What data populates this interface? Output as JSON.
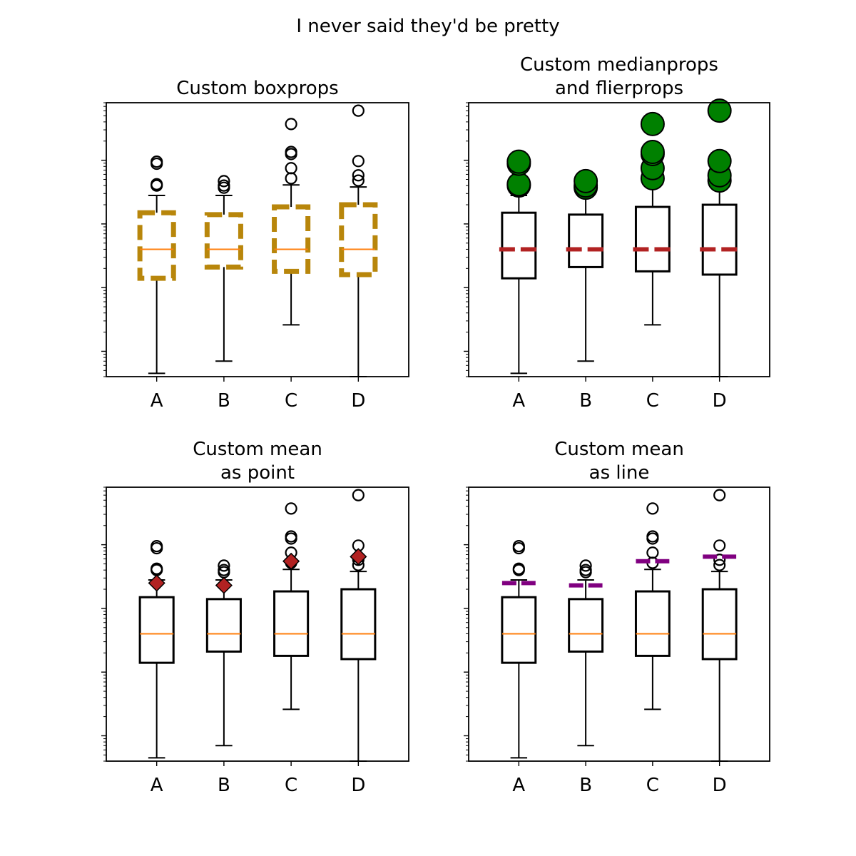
{
  "figure": {
    "suptitle": "I never said they'd be pretty"
  },
  "colors": {
    "box_edge": "#000000",
    "median_default": "#ff7f0e",
    "custom_box": "#b8860b",
    "custom_median": "#b22222",
    "flier_green": "#008000",
    "mean_point": "#b22222",
    "mean_line": "#800080"
  },
  "chart_data": [
    {
      "type": "box",
      "title": "Custom boxprops",
      "categories": [
        "A",
        "B",
        "C",
        "D"
      ],
      "yscale": "log",
      "ytick_labels_shown": false,
      "style": "custom-box",
      "ylim": [
        0.0004,
        8
      ],
      "series": [
        {
          "name": "A",
          "whislo": 0.00045,
          "q1": 0.014,
          "med": 0.04,
          "q3": 0.15,
          "whishi": 0.28,
          "mean": 0.25,
          "fliers": [
            0.4,
            0.42,
            0.88,
            0.95
          ]
        },
        {
          "name": "B",
          "whislo": 0.0007,
          "q1": 0.021,
          "med": 0.04,
          "q3": 0.14,
          "whishi": 0.28,
          "mean": 0.23,
          "fliers": [
            0.37,
            0.4,
            0.47
          ]
        },
        {
          "name": "C",
          "whislo": 0.0026,
          "q1": 0.018,
          "med": 0.04,
          "q3": 0.185,
          "whishi": 0.41,
          "mean": 0.55,
          "fliers": [
            0.52,
            0.75,
            1.25,
            1.35,
            3.7
          ]
        },
        {
          "name": "D",
          "whislo": 0.0004,
          "q1": 0.016,
          "med": 0.04,
          "q3": 0.2,
          "whishi": 0.38,
          "mean": 0.65,
          "fliers": [
            0.48,
            0.58,
            0.97,
            6.0
          ]
        }
      ]
    },
    {
      "type": "box",
      "title": "Custom medianprops\nand flierprops",
      "categories": [
        "A",
        "B",
        "C",
        "D"
      ],
      "yscale": "log",
      "ytick_labels_shown": false,
      "style": "custom-median-flier",
      "ylim": [
        0.0004,
        8
      ],
      "series": [
        {
          "name": "A",
          "whislo": 0.00045,
          "q1": 0.014,
          "med": 0.04,
          "q3": 0.15,
          "whishi": 0.28,
          "mean": 0.25,
          "fliers": [
            0.4,
            0.42,
            0.88,
            0.95
          ]
        },
        {
          "name": "B",
          "whislo": 0.0007,
          "q1": 0.021,
          "med": 0.04,
          "q3": 0.14,
          "whishi": 0.28,
          "mean": 0.23,
          "fliers": [
            0.37,
            0.4,
            0.47
          ]
        },
        {
          "name": "C",
          "whislo": 0.0026,
          "q1": 0.018,
          "med": 0.04,
          "q3": 0.185,
          "whishi": 0.41,
          "mean": 0.55,
          "fliers": [
            0.52,
            0.75,
            1.25,
            1.35,
            3.7
          ]
        },
        {
          "name": "D",
          "whislo": 0.0004,
          "q1": 0.016,
          "med": 0.04,
          "q3": 0.2,
          "whishi": 0.38,
          "mean": 0.65,
          "fliers": [
            0.48,
            0.58,
            0.97,
            6.0
          ]
        }
      ]
    },
    {
      "type": "box",
      "title": "Custom mean\nas point",
      "categories": [
        "A",
        "B",
        "C",
        "D"
      ],
      "yscale": "log",
      "ytick_labels_shown": false,
      "style": "mean-point",
      "ylim": [
        0.0004,
        8
      ],
      "series": [
        {
          "name": "A",
          "whislo": 0.00045,
          "q1": 0.014,
          "med": 0.04,
          "q3": 0.15,
          "whishi": 0.28,
          "mean": 0.25,
          "fliers": [
            0.4,
            0.42,
            0.88,
            0.95
          ]
        },
        {
          "name": "B",
          "whislo": 0.0007,
          "q1": 0.021,
          "med": 0.04,
          "q3": 0.14,
          "whishi": 0.28,
          "mean": 0.23,
          "fliers": [
            0.37,
            0.4,
            0.47
          ]
        },
        {
          "name": "C",
          "whislo": 0.0026,
          "q1": 0.018,
          "med": 0.04,
          "q3": 0.185,
          "whishi": 0.41,
          "mean": 0.55,
          "fliers": [
            0.52,
            0.75,
            1.25,
            1.35,
            3.7
          ]
        },
        {
          "name": "D",
          "whislo": 0.0004,
          "q1": 0.016,
          "med": 0.04,
          "q3": 0.2,
          "whishi": 0.38,
          "mean": 0.65,
          "fliers": [
            0.48,
            0.58,
            0.97,
            6.0
          ]
        }
      ]
    },
    {
      "type": "box",
      "title": "Custom mean\nas line",
      "categories": [
        "A",
        "B",
        "C",
        "D"
      ],
      "yscale": "log",
      "ytick_labels_shown": false,
      "style": "mean-line",
      "ylim": [
        0.0004,
        8
      ],
      "series": [
        {
          "name": "A",
          "whislo": 0.00045,
          "q1": 0.014,
          "med": 0.04,
          "q3": 0.15,
          "whishi": 0.28,
          "mean": 0.25,
          "fliers": [
            0.4,
            0.42,
            0.88,
            0.95
          ]
        },
        {
          "name": "B",
          "whislo": 0.0007,
          "q1": 0.021,
          "med": 0.04,
          "q3": 0.14,
          "whishi": 0.28,
          "mean": 0.23,
          "fliers": [
            0.37,
            0.4,
            0.47
          ]
        },
        {
          "name": "C",
          "whislo": 0.0026,
          "q1": 0.018,
          "med": 0.04,
          "q3": 0.185,
          "whishi": 0.41,
          "mean": 0.55,
          "fliers": [
            0.52,
            0.75,
            1.25,
            1.35,
            3.7
          ]
        },
        {
          "name": "D",
          "whislo": 0.0004,
          "q1": 0.016,
          "med": 0.04,
          "q3": 0.2,
          "whishi": 0.38,
          "mean": 0.65,
          "fliers": [
            0.48,
            0.58,
            0.97,
            6.0
          ]
        }
      ]
    }
  ]
}
